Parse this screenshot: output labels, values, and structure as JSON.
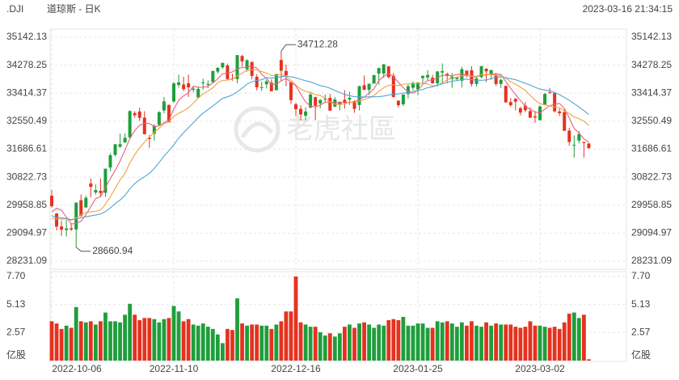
{
  "chart_data": {
    "type": "candlestick",
    "symbol": ".DJI",
    "title": "道琼斯 - 日K",
    "timestamp": "2023-03-16 21:34:15",
    "watermark": "老虎社區",
    "up_color": "#1f9e3c",
    "down_color": "#e5321f",
    "grid": true,
    "categories": [
      "2022-10-06",
      null,
      null,
      null,
      null,
      null,
      null,
      null,
      null,
      null,
      null,
      null,
      null,
      null,
      null,
      null,
      null,
      null,
      null,
      null,
      null,
      null,
      null,
      null,
      null,
      "2022-11-10",
      null,
      null,
      null,
      null,
      null,
      null,
      null,
      null,
      null,
      null,
      null,
      null,
      null,
      null,
      null,
      null,
      null,
      null,
      null,
      null,
      null,
      null,
      null,
      null,
      "2022-12-16",
      null,
      null,
      null,
      null,
      null,
      null,
      null,
      null,
      null,
      null,
      null,
      null,
      null,
      null,
      null,
      null,
      null,
      null,
      null,
      null,
      null,
      null,
      null,
      null,
      "2023-01-25",
      null,
      null,
      null,
      null,
      null,
      null,
      null,
      null,
      null,
      null,
      null,
      null,
      null,
      null,
      null,
      null,
      null,
      null,
      null,
      null,
      null,
      null,
      null,
      null,
      "2023-03-02",
      null,
      null,
      null,
      null,
      null,
      null,
      null,
      null,
      null,
      null
    ],
    "open": [
      30250,
      29700,
      29300,
      29190,
      29250,
      29210,
      30110,
      29890,
      30630,
      30350,
      30400,
      30340,
      31120,
      31510,
      31760,
      31890,
      32050,
      32800,
      32850,
      32660,
      32040,
      32160,
      32440,
      32880,
      33050,
      33160,
      33670,
      33680,
      33720,
      33520,
      33280,
      33720,
      33690,
      33760,
      34080,
      34210,
      34270,
      33870,
      33850,
      34560,
      34150,
      34380,
      33920,
      33580,
      33690,
      33740,
      33510,
      34440,
      34100,
      33750,
      33070,
      32930,
      32720,
      32970,
      33290,
      33100,
      33230,
      33270,
      33000,
      33060,
      33210,
      33220,
      33170,
      33050,
      33660,
      33520,
      33710,
      34020,
      34020,
      34240,
      33950,
      33180,
      33070,
      33390,
      33580,
      33530,
      33880,
      33900,
      33890,
      33720,
      34050,
      34010,
      33850,
      33850,
      33800,
      34110,
      34120,
      33700,
      33910,
      34170,
      34000,
      33970,
      33700,
      33640,
      33140,
      33240,
      32950,
      33030,
      32860,
      32700,
      32580,
      33050,
      33440,
      33420,
      32850,
      32830,
      32260,
      31820,
      31950,
      31910,
      31860
    ],
    "high": [
      30430,
      29720,
      29480,
      29520,
      29410,
      30040,
      30290,
      30250,
      30780,
      30600,
      30780,
      31090,
      31560,
      31850,
      32160,
      32170,
      32880,
      32860,
      32970,
      32860,
      32120,
      32460,
      32860,
      33300,
      33070,
      33760,
      33990,
      33920,
      33990,
      33620,
      33620,
      33860,
      33810,
      34110,
      34220,
      34360,
      34330,
      34010,
      34590,
      34600,
      34460,
      34380,
      34000,
      33770,
      33830,
      33840,
      34010,
      34712.28,
      34300,
      33750,
      33120,
      33040,
      32980,
      33460,
      33310,
      33230,
      33380,
      33390,
      33290,
      33160,
      33510,
      33460,
      33200,
      33640,
      33960,
      33710,
      33980,
      34200,
      34320,
      34260,
      34040,
      33200,
      33380,
      33690,
      33770,
      33760,
      33960,
      34120,
      33980,
      34090,
      34330,
      34050,
      34040,
      33930,
      34230,
      34110,
      34250,
      33900,
      34260,
      34180,
      34130,
      34040,
      33860,
      33640,
      33260,
      33260,
      33000,
      33140,
      32980,
      32860,
      33040,
      33420,
      33570,
      33430,
      32940,
      32920,
      32350,
      32110,
      32240,
      31910,
      31880
    ],
    "low": [
      29880,
      29180,
      29010,
      28990,
      29160,
      28660.94,
      29590,
      29870,
      30200,
      30280,
      30210,
      30210,
      31010,
      31460,
      31730,
      31890,
      32000,
      32660,
      32560,
      32140,
      31730,
      31950,
      32410,
      32790,
      32510,
      33120,
      33590,
      33480,
      33300,
      33440,
      33280,
      33520,
      33570,
      33740,
      34020,
      34170,
      33820,
      33800,
      33720,
      34230,
      34080,
      33850,
      33500,
      33480,
      33560,
      33470,
      33490,
      33800,
      33630,
      33090,
      32710,
      32570,
      32580,
      32950,
      32580,
      32940,
      33150,
      32870,
      32990,
      32880,
      32940,
      33050,
      32810,
      32880,
      33510,
      33360,
      33710,
      33680,
      33890,
      33870,
      33280,
      32980,
      33020,
      33250,
      33500,
      33350,
      33680,
      33810,
      33710,
      33620,
      33720,
      33740,
      33580,
      33780,
      33590,
      33900,
      33620,
      33620,
      33880,
      33760,
      33830,
      33640,
      33580,
      33120,
      32990,
      32880,
      32730,
      32830,
      32650,
      32500,
      32580,
      33040,
      33390,
      32820,
      32710,
      32250,
      31800,
      31430,
      31860,
      31430,
      31700
    ],
    "close": [
      29927,
      29297,
      29203,
      29239,
      29211,
      30039,
      29635,
      30186,
      30524,
      30424,
      30334,
      31083,
      31500,
      31837,
      31840,
      32034,
      32862,
      32733,
      32653,
      32148,
      32001,
      32403,
      32827,
      33161,
      32514,
      33716,
      33748,
      33537,
      33593,
      33554,
      33546,
      33746,
      33700,
      34098,
      34195,
      34347,
      33850,
      33853,
      34590,
      34395,
      34430,
      33947,
      33596,
      33598,
      33781,
      33476,
      34005,
      34108,
      33966,
      33202,
      32920,
      32757,
      32850,
      33376,
      33027,
      33204,
      33241,
      32876,
      33221,
      33147,
      33136,
      33270,
      32930,
      33631,
      33518,
      33704,
      33973,
      34190,
      34303,
      33910,
      33297,
      33045,
      33375,
      33630,
      33734,
      33744,
      33949,
      33978,
      33717,
      34086,
      34093,
      33949,
      33926,
      33891,
      34156,
      33949,
      33699,
      33869,
      34246,
      34089,
      34128,
      33697,
      33827,
      33130,
      33045,
      33154,
      32817,
      32889,
      32657,
      32662,
      33004,
      33391,
      33431,
      32856,
      32798,
      32254,
      31910,
      31820,
      32155,
      31875,
      31720
    ],
    "ylim": [
      28231.09,
      35142.13
    ],
    "yticks": [
      28231.09,
      29094.97,
      29958.85,
      30822.73,
      31686.61,
      32550.49,
      33414.37,
      34278.25,
      35142.13
    ],
    "ma": [
      {
        "color": "#e8607e",
        "values": [
          29747,
          29861,
          29803,
          29588,
          29375,
          29398,
          29465,
          29662,
          29919,
          30162,
          30221,
          30510,
          30773,
          31036,
          31319,
          31659,
          32015,
          32261,
          32424,
          32486,
          32479,
          32388,
          32406,
          32508,
          32581,
          32924,
          33193,
          33335,
          33422,
          33630,
          33596,
          33595,
          33628,
          33729,
          33857,
          34017,
          34038,
          34069,
          34167,
          34207,
          34224,
          34243,
          34192,
          33993,
          33870,
          33680,
          33691,
          33794,
          33867,
          33751,
          33640,
          33391,
          33139,
          33021,
          32986,
          33043,
          33140,
          33145,
          33114,
          33138,
          33124,
          33130,
          33141,
          33223,
          33297,
          33411,
          33551,
          33803,
          33938,
          34016,
          33935,
          33749,
          33586,
          33451,
          33416,
          33506,
          33686,
          33807,
          33824,
          33895,
          33965,
          33965,
          33954,
          33989,
          34003,
          33974,
          33924,
          33913,
          33984,
          33970,
          34006,
          34006,
          33997,
          33774,
          33565,
          33371,
          33195,
          33007,
          32912,
          32836,
          32806,
          32921,
          33029,
          33069,
          33096,
          32946,
          32650,
          32328,
          32187,
          32003,
          31896
        ]
      },
      {
        "color": "#f3a03f",
        "values": [
          29563,
          29534,
          29528,
          29538,
          29491,
          29573,
          29663,
          29733,
          29754,
          29769,
          29810,
          29988,
          30218,
          30478,
          30741,
          30940,
          31263,
          31517,
          31730,
          31903,
          32069,
          32202,
          32334,
          32466,
          32534,
          32702,
          32791,
          32871,
          32965,
          33106,
          33260,
          33394,
          33482,
          33576,
          33744,
          33807,
          33817,
          33849,
          33948,
          34032,
          34121,
          34141,
          34131,
          34080,
          34039,
          33952,
          33967,
          33993,
          33930,
          33811,
          33660,
          33541,
          33467,
          33444,
          33369,
          33342,
          33266,
          33142,
          33068,
          33062,
          33084,
          33135,
          33143,
          33169,
          33218,
          33268,
          33341,
          33472,
          33581,
          33657,
          33673,
          33650,
          33695,
          33695,
          33716,
          33721,
          33718,
          33697,
          33638,
          33656,
          33736,
          33826,
          33881,
          33907,
          33949,
          33970,
          33945,
          33934,
          33987,
          33987,
          33990,
          33965,
          33955,
          33879,
          33768,
          33689,
          33601,
          33502,
          33343,
          33201,
          33089,
          33058,
          33018,
          32991,
          32966,
          32876,
          32786,
          32679,
          32628,
          32550,
          32421
        ]
      },
      {
        "color": "#4ea6d6",
        "values": [
          29632,
          29592,
          29564,
          29549,
          29511,
          29537,
          29572,
          29602,
          29627,
          29655,
          29687,
          29761,
          29873,
          30008,
          30116,
          30257,
          30463,
          30625,
          30742,
          30836,
          30940,
          31095,
          31276,
          31472,
          31638,
          31821,
          32027,
          32194,
          32348,
          32505,
          32665,
          32798,
          32908,
          33021,
          33139,
          33255,
          33304,
          33360,
          33457,
          33569,
          33691,
          33768,
          33807,
          33828,
          33892,
          33880,
          33892,
          33921,
          33939,
          33922,
          33891,
          33841,
          33799,
          33762,
          33704,
          33647,
          33617,
          33568,
          33499,
          33437,
          33372,
          33338,
          33305,
          33307,
          33294,
          33305,
          33304,
          33307,
          33325,
          33360,
          33379,
          33393,
          33419,
          33432,
          33467,
          33495,
          33530,
          33585,
          33610,
          33657,
          33705,
          33738,
          33788,
          33801,
          33833,
          33846,
          33832,
          33816,
          33813,
          33822,
          33863,
          33896,
          33918,
          33893,
          33859,
          33830,
          33773,
          33718,
          33665,
          33594,
          33540,
          33512,
          33487,
          33435,
          33367,
          33283,
          33194,
          33091,
          32986,
          32876,
          32755
        ]
      }
    ],
    "volume": {
      "unit": "亿股",
      "ylim": [
        0,
        7.7
      ],
      "yticks": [
        2.57,
        5.13,
        {
          "value": 7.7,
          "label": "7.70"
        }
      ],
      "values": [
        3.6,
        3.4,
        2.9,
        3.2,
        3.0,
        4.9,
        3.6,
        3.5,
        3.6,
        3.3,
        3.6,
        4.4,
        3.6,
        3.6,
        3.5,
        4.2,
        5.2,
        4.2,
        3.7,
        3.9,
        3.9,
        3.8,
        3.5,
        3.8,
        3.9,
        5.0,
        4.5,
        3.6,
        3.8,
        3.3,
        3.2,
        3.4,
        3.1,
        2.9,
        2.4,
        1.6,
        2.9,
        2.8,
        5.7,
        3.4,
        3.2,
        3.3,
        3.3,
        3.2,
        3.2,
        2.9,
        3.3,
        3.6,
        4.5,
        4.5,
        7.7,
        3.5,
        3.3,
        3.1,
        3.1,
        2.6,
        2.3,
        2.5,
        2.2,
        2.5,
        3.1,
        3.3,
        3.0,
        3.4,
        3.5,
        3.3,
        3.0,
        3.3,
        3.2,
        3.7,
        3.8,
        3.7,
        4.0,
        3.2,
        3.2,
        3.4,
        3.4,
        3.0,
        3.0,
        3.6,
        3.5,
        3.6,
        3.4,
        3.1,
        3.5,
        3.2,
        3.6,
        3.2,
        3.1,
        3.5,
        3.2,
        3.4,
        3.3,
        3.3,
        3.3,
        3.1,
        3.0,
        3.1,
        3.6,
        3.2,
        3.2,
        3.1,
        3.0,
        3.1,
        2.9,
        3.5,
        4.3,
        4.4,
        3.9,
        4.2,
        0.12
      ]
    }
  }
}
